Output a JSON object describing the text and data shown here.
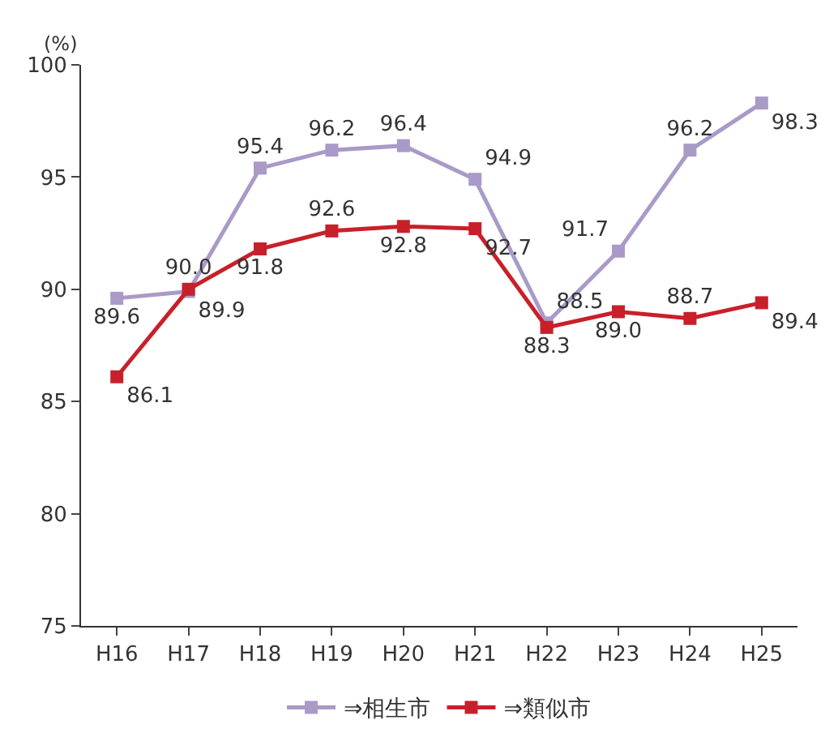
{
  "chart_data": {
    "type": "line",
    "ylabel": "(%)",
    "categories": [
      "H16",
      "H17",
      "H18",
      "H19",
      "H20",
      "H21",
      "H22",
      "H23",
      "H24",
      "H25"
    ],
    "series": [
      {
        "name": "⇒相生市",
        "color": "#a99ac8",
        "values": [
          89.6,
          89.9,
          95.4,
          96.2,
          96.4,
          94.9,
          88.5,
          91.7,
          96.2,
          98.3
        ],
        "value_labels": [
          "89.6",
          "89.9",
          "95.4",
          "96.2",
          "96.4",
          "94.9",
          "88.5",
          "91.7",
          "96.2",
          "98.3"
        ]
      },
      {
        "name": "⇒類似市",
        "color": "#c8202a",
        "values": [
          86.1,
          90.0,
          91.8,
          92.6,
          92.8,
          92.7,
          88.3,
          89.0,
          88.7,
          89.4
        ],
        "value_labels": [
          "86.1",
          "90.0",
          "91.8",
          "92.6",
          "92.8",
          "92.7",
          "88.3",
          "89.0",
          "88.7",
          "89.4"
        ]
      }
    ],
    "ylim": [
      75,
      100
    ],
    "yticks": [
      75,
      80,
      85,
      90,
      95,
      100
    ],
    "legend": "bottom",
    "marker": "square",
    "line_style": "solid"
  }
}
